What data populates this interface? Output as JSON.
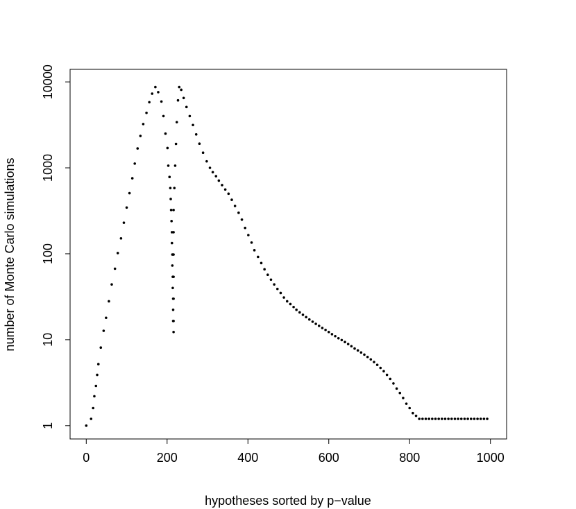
{
  "chart_data": {
    "type": "scatter",
    "title": "",
    "xlabel": "hypotheses sorted by p−value",
    "ylabel": "number of Monte Carlo simulations",
    "xlim": [
      -40,
      1040
    ],
    "ylim": [
      0.7,
      14000
    ],
    "y_scale": "log",
    "grid": false,
    "legend": "none",
    "point_color": "#000000",
    "x_ticks": [
      {
        "value": 0,
        "label": "0"
      },
      {
        "value": 200,
        "label": "200"
      },
      {
        "value": 400,
        "label": "400"
      },
      {
        "value": 600,
        "label": "600"
      },
      {
        "value": 800,
        "label": "800"
      },
      {
        "value": 1000,
        "label": "1000"
      }
    ],
    "y_ticks": [
      {
        "value": 1,
        "label": "1"
      },
      {
        "value": 10,
        "label": "10"
      },
      {
        "value": 100,
        "label": "100"
      },
      {
        "value": 1000,
        "label": "1000"
      },
      {
        "value": 10000,
        "label": "10000"
      }
    ],
    "points": {
      "x": [
        0,
        12,
        17,
        20,
        24,
        27,
        30,
        36,
        43,
        49,
        56,
        63,
        71,
        78,
        86,
        93,
        100,
        107,
        114,
        120,
        127,
        134,
        141,
        149,
        156,
        163,
        171,
        178,
        186,
        191,
        196,
        201,
        203,
        206,
        208,
        209,
        210,
        211,
        212,
        212,
        213,
        213,
        214,
        214,
        215,
        215,
        215,
        216,
        216,
        216,
        216,
        216,
        216,
        216,
        218,
        220,
        222,
        224,
        227,
        230,
        235,
        241,
        248,
        256,
        264,
        272,
        280,
        289,
        298,
        306,
        313,
        321,
        328,
        336,
        344,
        352,
        360,
        368,
        377,
        385,
        393,
        401,
        409,
        416,
        425,
        433,
        441,
        449,
        457,
        465,
        473,
        481,
        489,
        497,
        505,
        513,
        520,
        528,
        536,
        544,
        552,
        560,
        568,
        576,
        584,
        592,
        600,
        608,
        616,
        624,
        632,
        640,
        648,
        656,
        664,
        672,
        680,
        688,
        696,
        704,
        712,
        720,
        728,
        736,
        744,
        752,
        760,
        768,
        776,
        784,
        792,
        800,
        808,
        816,
        824,
        832,
        840,
        848,
        856,
        864,
        872,
        880,
        888,
        896,
        904,
        912,
        920,
        928,
        936,
        944,
        952,
        960,
        968,
        976,
        984,
        992
      ],
      "y": [
        1,
        1.2,
        1.6,
        2.2,
        2.9,
        3.9,
        5.2,
        8.1,
        12.7,
        18,
        28,
        44,
        67,
        102,
        151,
        230,
        345,
        507,
        756,
        1120,
        1680,
        2350,
        3230,
        4360,
        5800,
        7300,
        8700,
        7600,
        5910,
        4000,
        2500,
        1700,
        1060,
        783,
        582,
        434,
        323,
        240,
        178,
        133,
        98,
        73,
        54,
        40,
        30,
        22.3,
        16.5,
        12.3,
        16.5,
        30,
        54,
        98,
        178,
        323,
        582,
        1060,
        1900,
        3400,
        6100,
        8700,
        8100,
        6500,
        5100,
        4000,
        3150,
        2450,
        1910,
        1500,
        1190,
        1000,
        890,
        800,
        710,
        630,
        560,
        500,
        425,
        360,
        300,
        250,
        200,
        165,
        135,
        110,
        92,
        78,
        66,
        57,
        50,
        44,
        39,
        35,
        31,
        28,
        26,
        24,
        22.3,
        20.8,
        19.5,
        18.3,
        17.2,
        16.2,
        15.3,
        14.5,
        13.7,
        13,
        12.3,
        11.6,
        11,
        10.4,
        9.9,
        9.4,
        8.9,
        8.4,
        7.9,
        7.5,
        7.1,
        6.7,
        6.3,
        5.9,
        5.5,
        5.1,
        4.7,
        4.3,
        3.9,
        3.5,
        3.1,
        2.7,
        2.4,
        2.1,
        1.8,
        1.6,
        1.4,
        1.3,
        1.2,
        1.2,
        1.2,
        1.2,
        1.2,
        1.2,
        1.2,
        1.2,
        1.2,
        1.2,
        1.2,
        1.2,
        1.2,
        1.2,
        1.2,
        1.2,
        1.2,
        1.2,
        1.2,
        1.2,
        1.2,
        1.2
      ]
    }
  }
}
